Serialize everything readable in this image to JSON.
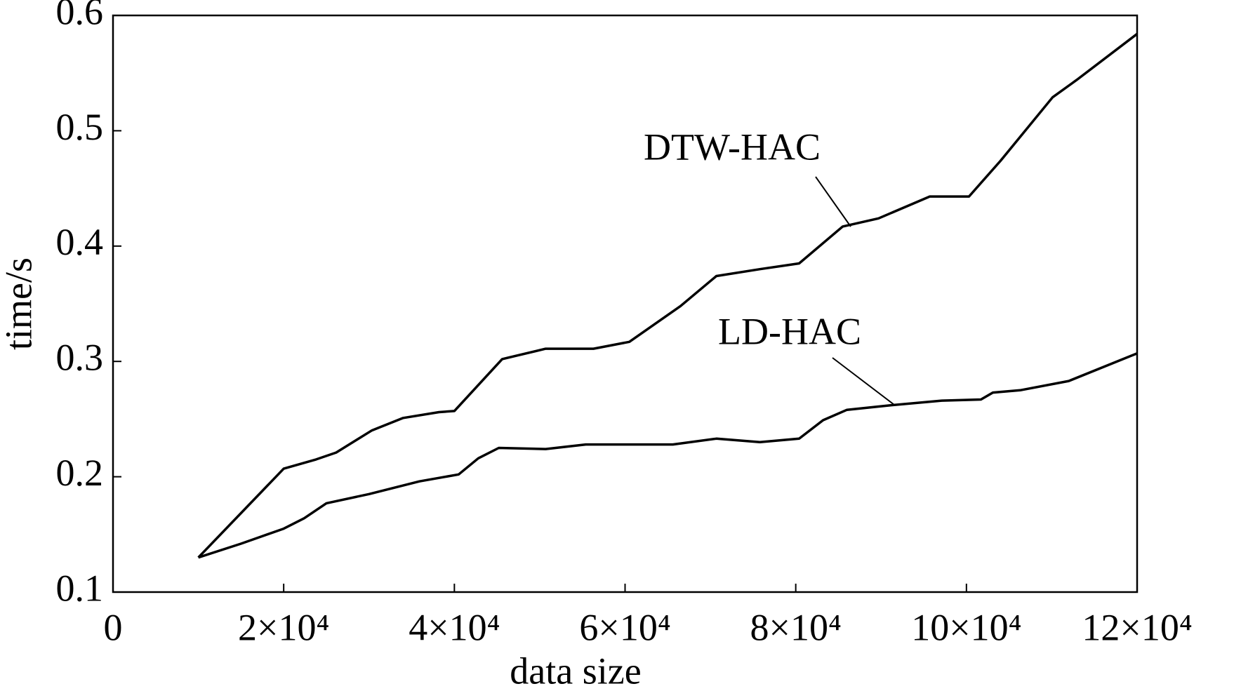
{
  "chart_data": {
    "type": "line",
    "x_label": "data size",
    "y_label": "time/s",
    "xlim": [
      0,
      120000
    ],
    "xticks": [
      0,
      {
        "value": 20000,
        "label": "2×10⁴"
      },
      {
        "value": 40000,
        "label": "4×10⁴"
      },
      {
        "value": 60000,
        "label": "6×10⁴"
      },
      {
        "value": 80000,
        "label": "8×10⁴"
      },
      {
        "value": 100000,
        "label": "10×10⁴"
      },
      {
        "value": 120000,
        "label": "12×10⁴"
      }
    ],
    "ylim": [
      0.1,
      0.6
    ],
    "yticks": [
      0.1,
      0.2,
      0.3,
      0.4,
      0.5,
      0.6
    ],
    "grid": false,
    "series": [
      {
        "name": "DTW-HAC",
        "color": "#000000",
        "x": [
          10000,
          20000,
          23800,
          26150,
          30300,
          34000,
          38200,
          40000,
          45600,
          50700,
          56300,
          60500,
          66500,
          70700,
          75800,
          80400,
          85500,
          89700,
          95700,
          100300,
          104000,
          110100,
          112900,
          120000
        ],
        "values": [
          0.13,
          0.207,
          0.215,
          0.221,
          0.24,
          0.251,
          0.256,
          0.257,
          0.302,
          0.311,
          0.311,
          0.317,
          0.348,
          0.374,
          0.38,
          0.385,
          0.417,
          0.424,
          0.443,
          0.443,
          0.474,
          0.529,
          0.544,
          0.584
        ]
      },
      {
        "name": "LD-HAC",
        "color": "#000000",
        "x": [
          10000,
          15000,
          20000,
          22400,
          25000,
          30000,
          35900,
          40500,
          42800,
          45200,
          50700,
          55400,
          61000,
          65600,
          70700,
          75800,
          80400,
          83200,
          86000,
          91100,
          97100,
          101700,
          103100,
          106300,
          112000,
          120000
        ],
        "values": [
          0.13,
          0.142,
          0.155,
          0.164,
          0.177,
          0.185,
          0.196,
          0.202,
          0.216,
          0.225,
          0.224,
          0.228,
          0.228,
          0.228,
          0.233,
          0.23,
          0.233,
          0.249,
          0.258,
          0.262,
          0.266,
          0.267,
          0.273,
          0.275,
          0.283,
          0.307
        ]
      }
    ]
  }
}
